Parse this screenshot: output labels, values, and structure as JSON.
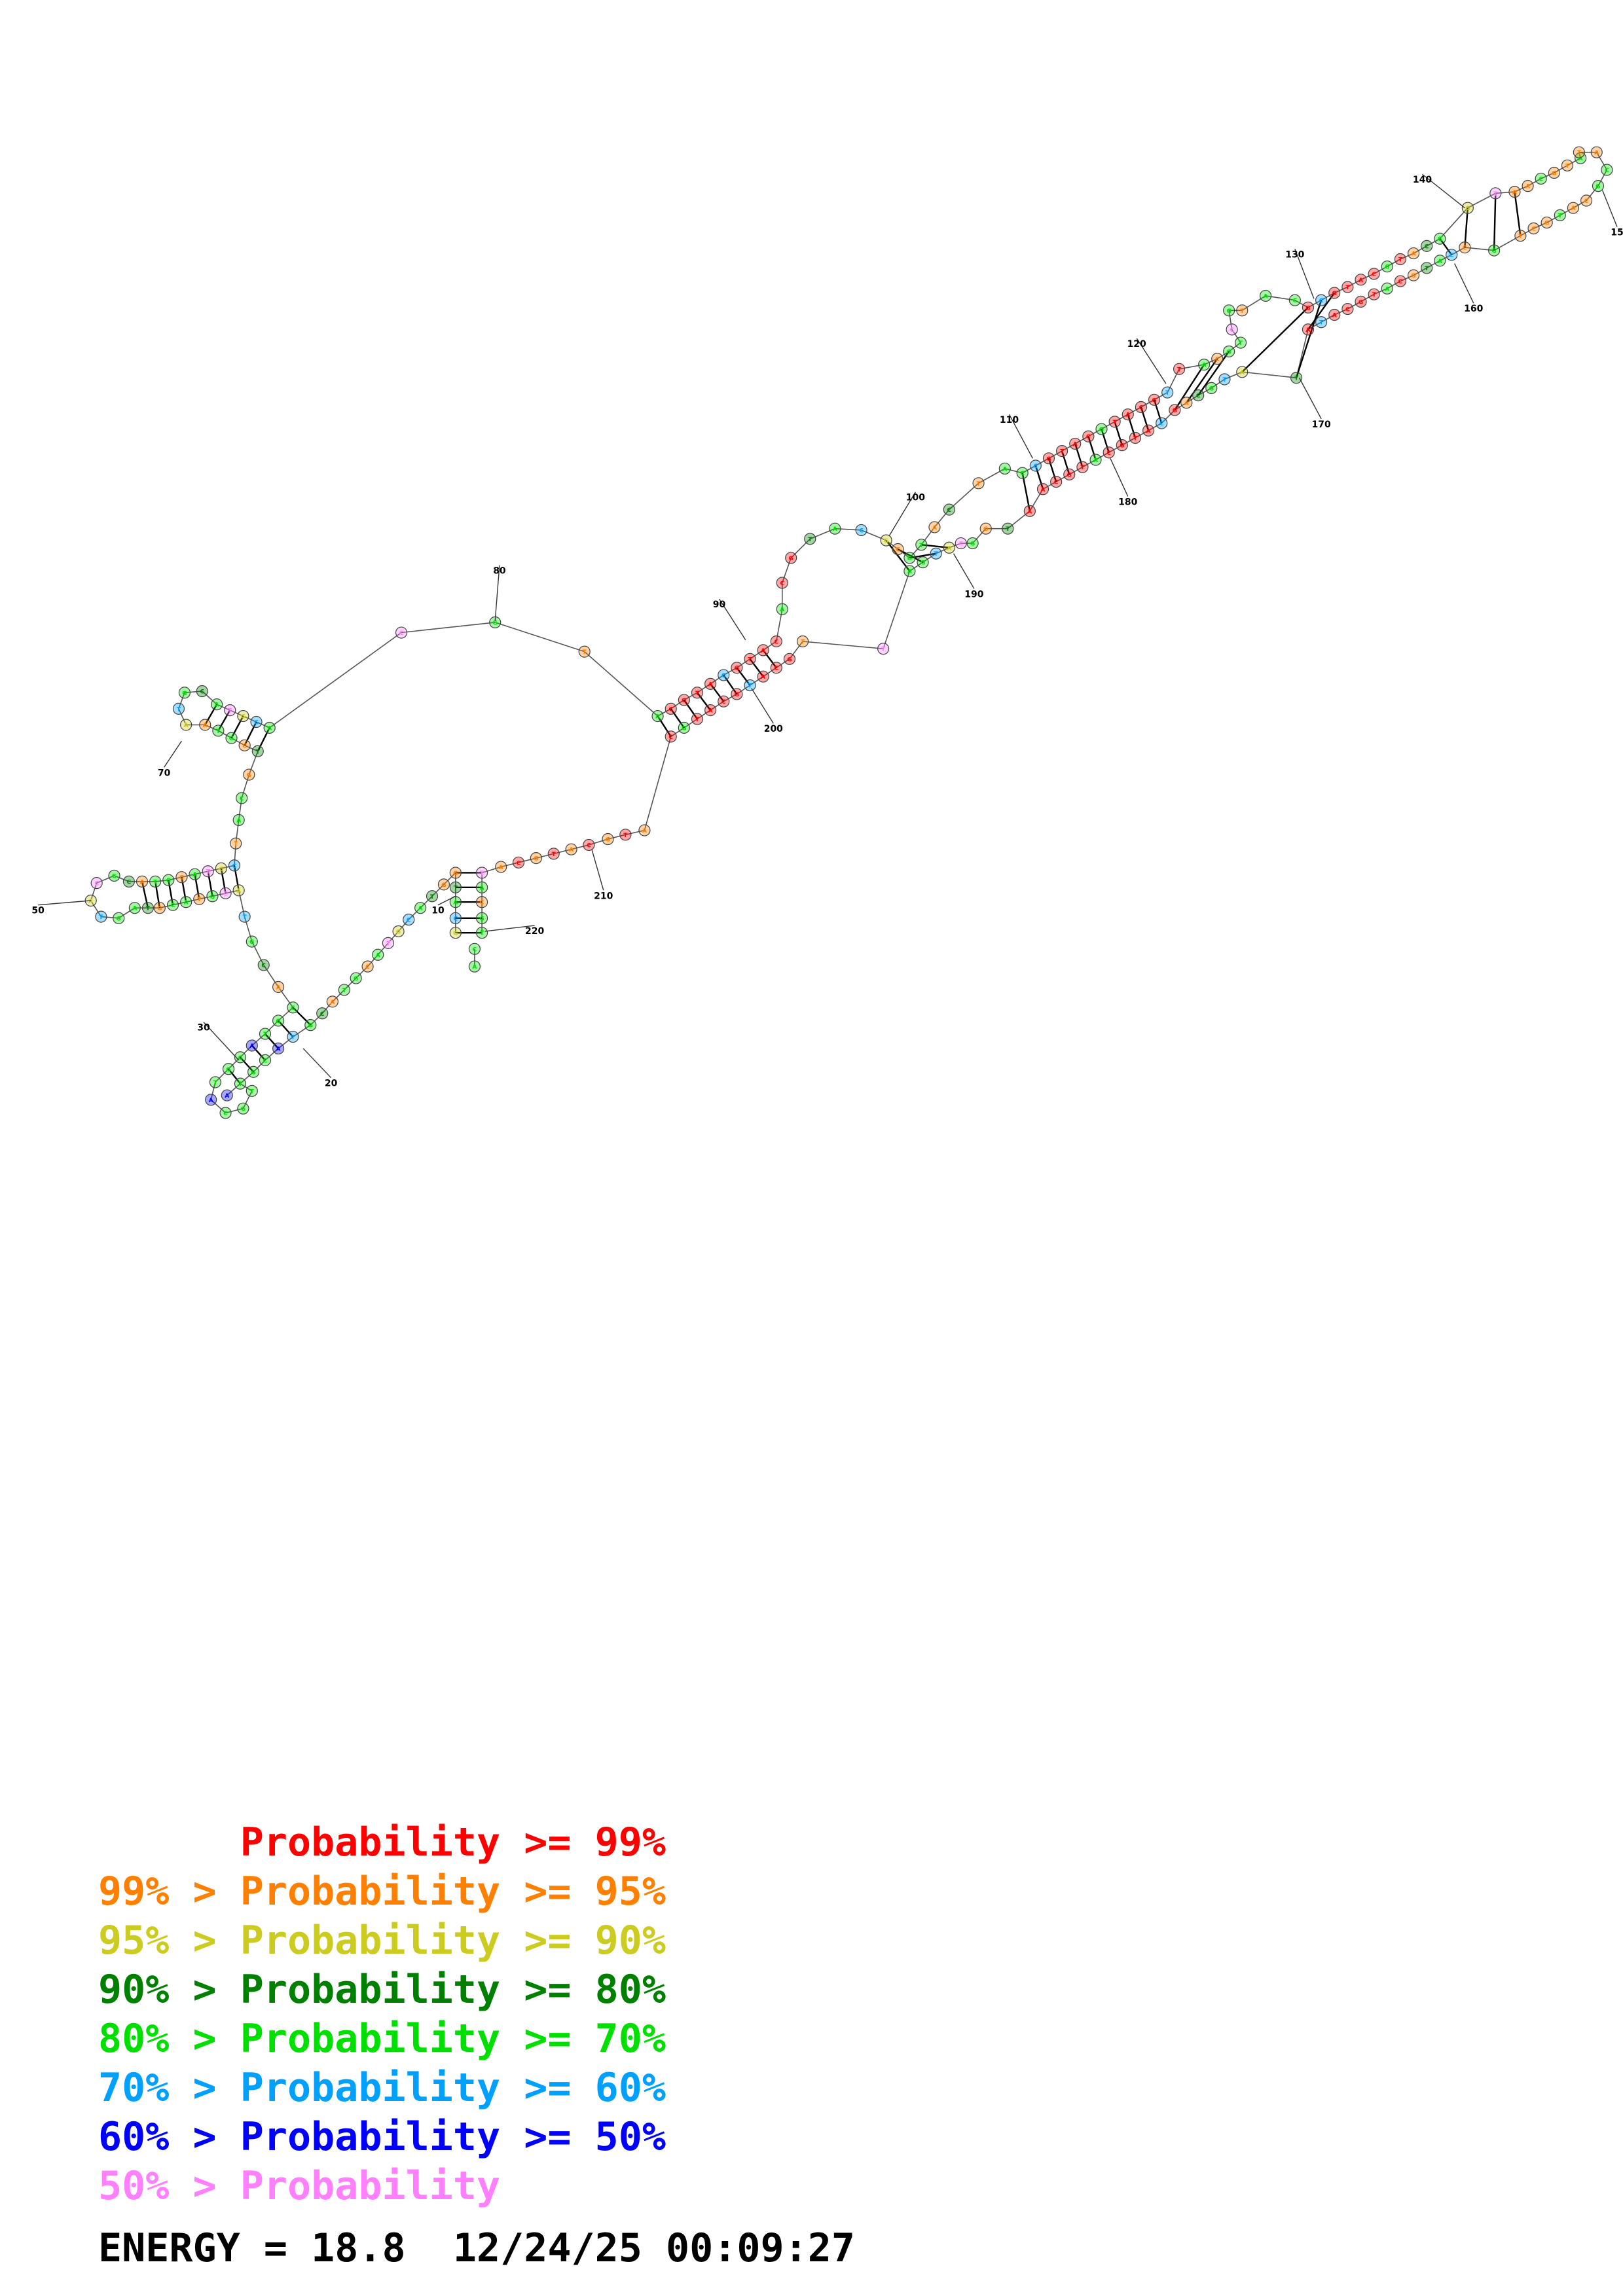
{
  "colors": {
    "p99": "#ff0000",
    "p95": "#ff8000",
    "p90": "#cccc20",
    "p80": "#008000",
    "p70": "#00e000",
    "p60": "#00a0ff",
    "p50": "#0000ff",
    "p0": "#ff80ff"
  },
  "diagram": {
    "position_labels": [
      "10",
      "20",
      "30",
      "50",
      "70",
      "80",
      "90",
      "100",
      "110",
      "120",
      "130",
      "140",
      "15",
      "160",
      "170",
      "180",
      "190",
      "200",
      "210",
      "220"
    ],
    "nucleotide_classes": [
      "p99",
      "p95",
      "p90",
      "p80",
      "p70",
      "p60",
      "p50",
      "p0"
    ]
  },
  "legend": [
    {
      "prefix": "      ",
      "text": "Probability >= 99%",
      "color_key": "p99"
    },
    {
      "prefix": "",
      "text": "99% > Probability >= 95%",
      "color_key": "p95"
    },
    {
      "prefix": "",
      "text": "95% > Probability >= 90%",
      "color_key": "p90"
    },
    {
      "prefix": "",
      "text": "90% > Probability >= 80%",
      "color_key": "p80"
    },
    {
      "prefix": "",
      "text": "80% > Probability >= 70%",
      "color_key": "p70"
    },
    {
      "prefix": "",
      "text": "70% > Probability >= 60%",
      "color_key": "p60"
    },
    {
      "prefix": "",
      "text": "60% > Probability >= 50%",
      "color_key": "p50"
    },
    {
      "prefix": "",
      "text": "50% > Probability",
      "color_key": "p0"
    }
  ],
  "footer": {
    "text": "ENERGY = 18.8  12/24/25 00:09:27"
  }
}
